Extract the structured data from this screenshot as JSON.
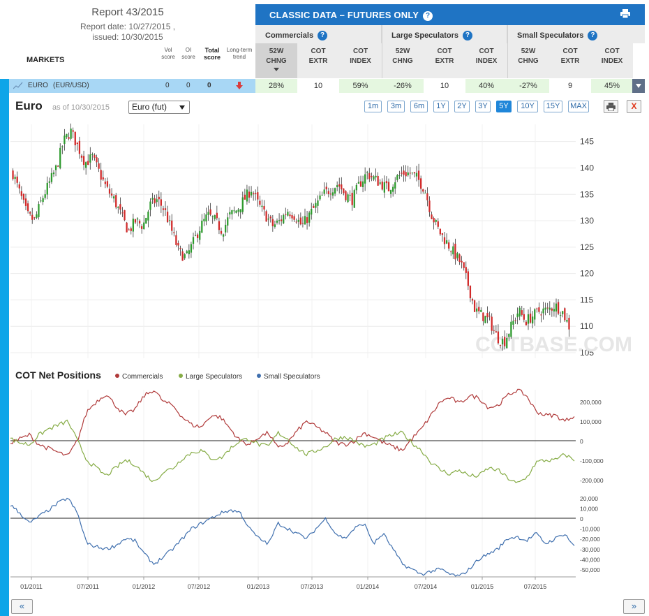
{
  "report": {
    "title": "Report 43/2015",
    "report_date": "Report date: 10/27/2015 ,",
    "issued": "issued: 10/30/2015"
  },
  "classic": {
    "title": "CLASSIC DATA – FUTURES ONLY",
    "help": "?"
  },
  "groups": [
    "Commercials",
    "Large Speculators",
    "Small Speculators"
  ],
  "columns": [
    [
      "52W",
      "CHNG"
    ],
    [
      "COT",
      "EXTR"
    ],
    [
      "COT",
      "INDEX"
    ],
    [
      "52W",
      "CHNG"
    ],
    [
      "COT",
      "EXTR"
    ],
    [
      "COT",
      "INDEX"
    ],
    [
      "52W",
      "CHNG"
    ],
    [
      "COT",
      "EXTR"
    ],
    [
      "COT",
      "INDEX"
    ]
  ],
  "markets_label": "MARKETS",
  "left_headers": {
    "vol": [
      "Vol",
      "score"
    ],
    "oi": [
      "OI",
      "score"
    ],
    "total": [
      "Total",
      "score"
    ],
    "trend": [
      "Long-term",
      "trend"
    ]
  },
  "row": {
    "market": "EURO",
    "symbol": "(EUR/USD)",
    "vol_score": "0",
    "oi_score": "0",
    "total_score": "0",
    "values": [
      "28%",
      "10",
      "59%",
      "-26%",
      "10",
      "40%",
      "-27%",
      "9",
      "45%"
    ]
  },
  "chart_header": {
    "title": "Euro",
    "as_of": "as of 10/30/2015",
    "select_value": "Euro (fut)",
    "ranges": [
      "1m",
      "3m",
      "6m",
      "1Y",
      "2Y",
      "3Y",
      "5Y",
      "10Y",
      "15Y",
      "MAX"
    ],
    "active_range": "5Y",
    "close": "X"
  },
  "chart_data": [
    {
      "type": "candlestick",
      "title": "Euro",
      "ylim": [
        105,
        148
      ],
      "y_ticks": [
        "145",
        "140",
        "135",
        "130",
        "125",
        "120",
        "115",
        "110",
        "105"
      ],
      "x_ticks": [
        "01/2011",
        "07/2011",
        "01/2012",
        "07/2012",
        "01/2013",
        "07/2013",
        "01/2014",
        "07/2014",
        "01/2015",
        "07/2015"
      ],
      "watermark": "COTBASE.COM",
      "closes": [
        139,
        135,
        131,
        130,
        134,
        137,
        140,
        145,
        147,
        144,
        141,
        142,
        139,
        136,
        134,
        131,
        128,
        130,
        129,
        133,
        134,
        132,
        128,
        124,
        123,
        126,
        129,
        131,
        130,
        128,
        131,
        132,
        134,
        136,
        133,
        131,
        129,
        130,
        132,
        131,
        129,
        131,
        133,
        135,
        136,
        137,
        135,
        134,
        137,
        139,
        138,
        137,
        136,
        138,
        139,
        139,
        138,
        136,
        131,
        128,
        126,
        124,
        122,
        118,
        113,
        112,
        111,
        108,
        107,
        110,
        113,
        111,
        112,
        113,
        113,
        114,
        113,
        110
      ]
    },
    {
      "type": "line",
      "title": "COT Net Positions",
      "series": [
        {
          "name": "Commercials",
          "color": "#b03a3a"
        },
        {
          "name": "Large Speculators",
          "color": "#86ac46"
        },
        {
          "name": "Small Speculators",
          "color": "#3f6fae"
        }
      ],
      "upper_ticks": [
        "200,000",
        "100,000",
        "0",
        "-100,000",
        "-200,000"
      ],
      "lower_ticks": [
        "20,000",
        "10,000",
        "0",
        "-10,000",
        "-20,000",
        "-30,000",
        "-40,000",
        "-50,000"
      ],
      "commercials": [
        -10000,
        10000,
        30000,
        -20000,
        -40000,
        -60000,
        -80000,
        0,
        150000,
        200000,
        240000,
        180000,
        130000,
        160000,
        230000,
        260000,
        200000,
        180000,
        120000,
        80000,
        70000,
        130000,
        120000,
        60000,
        0,
        -20000,
        20000,
        40000,
        -40000,
        -10000,
        50000,
        100000,
        70000,
        40000,
        -10000,
        -20000,
        0,
        40000,
        20000,
        -10000,
        -30000,
        -50000,
        10000,
        60000,
        130000,
        200000,
        220000,
        190000,
        230000,
        220000,
        170000,
        180000,
        230000,
        260000,
        230000,
        150000,
        130000,
        130000,
        100000,
        130000
      ],
      "large_speculators": [
        10000,
        -10000,
        -20000,
        30000,
        60000,
        80000,
        100000,
        0,
        -100000,
        -140000,
        -180000,
        -140000,
        -100000,
        -120000,
        -170000,
        -210000,
        -160000,
        -140000,
        -90000,
        -60000,
        -50000,
        -90000,
        -90000,
        -40000,
        0,
        10000,
        -20000,
        -30000,
        40000,
        10000,
        -40000,
        -70000,
        -50000,
        -30000,
        10000,
        20000,
        0,
        -30000,
        -20000,
        10000,
        30000,
        40000,
        -10000,
        -50000,
        -110000,
        -150000,
        -170000,
        -150000,
        -180000,
        -180000,
        -140000,
        -150000,
        -190000,
        -220000,
        -190000,
        -110000,
        -100000,
        -100000,
        -70000,
        -100000
      ],
      "small_speculators": [
        13000,
        5000,
        -5000,
        2000,
        8000,
        15000,
        20000,
        5000,
        -25000,
        -28000,
        -30000,
        -27000,
        -20000,
        -22000,
        -35000,
        -45000,
        -38000,
        -30000,
        -20000,
        -10000,
        -5000,
        0,
        5000,
        8000,
        6000,
        -10000,
        -20000,
        -25000,
        -5000,
        -10000,
        -15000,
        -20000,
        -10000,
        0,
        -15000,
        -20000,
        -10000,
        -5000,
        -25000,
        -15000,
        -30000,
        -45000,
        -50000,
        -55000,
        -52000,
        -50000,
        -55000,
        -57000,
        -50000,
        -40000,
        -35000,
        -30000,
        -20000,
        -18000,
        -22000,
        -15000,
        -25000,
        -20000,
        -15000,
        -28000
      ]
    }
  ],
  "cot_title": "COT Net Positions",
  "nav": {
    "prev": "«",
    "next": "»"
  }
}
